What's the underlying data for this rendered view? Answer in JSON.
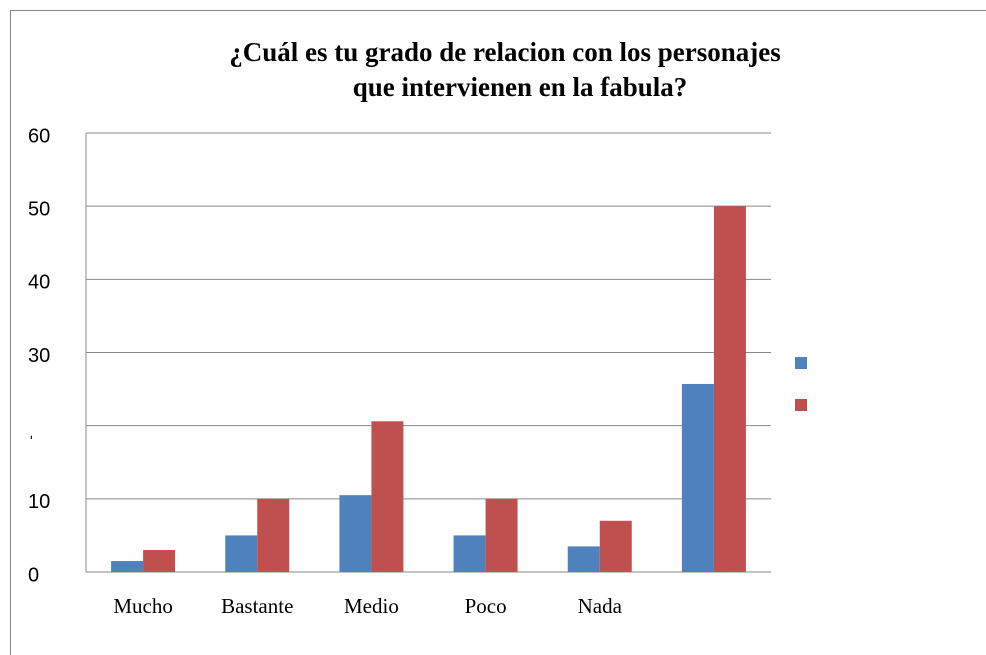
{
  "chart_data": {
    "type": "bar",
    "title": [
      "¿Cuál es tu grado de relacion con los personajes",
      "que intervienen en la fabula?"
    ],
    "categories": [
      "Mucho",
      "Bastante",
      "Medio",
      "Poco",
      "Nada",
      null
    ],
    "series": [
      {
        "color": "#4f81bd",
        "values": [
          1.5,
          5,
          10.5,
          5,
          3.5,
          25.7
        ]
      },
      {
        "color": "#c0504d",
        "values": [
          3,
          10,
          20.6,
          10,
          7,
          50
        ]
      }
    ],
    "ylim": [
      0,
      60
    ],
    "yticks": [
      0,
      10,
      {
        "value": 20,
        "label": "ˌ"
      },
      30,
      40,
      50,
      60
    ],
    "grid": true
  }
}
